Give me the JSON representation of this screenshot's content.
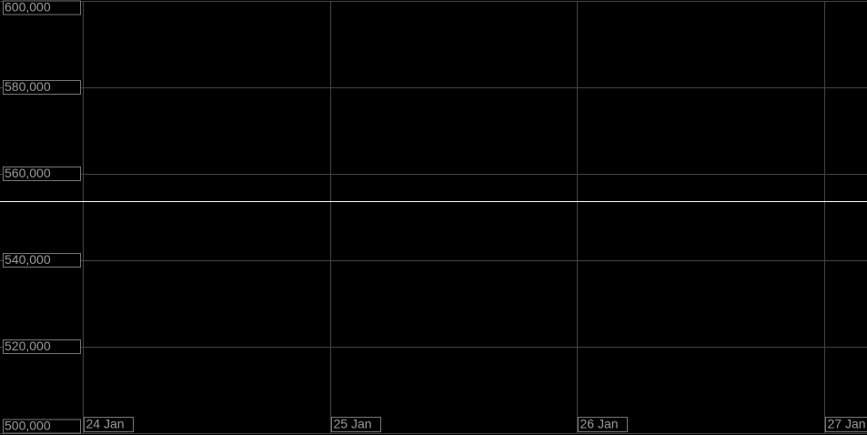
{
  "chart_data": {
    "type": "line",
    "categories": [
      "24 Jan",
      "25 Jan",
      "26 Jan",
      "27 Jan"
    ],
    "reference_line": 553700,
    "ylim": [
      500000,
      600000
    ],
    "yticks": [
      {
        "value": 500000,
        "label": "500,000"
      },
      {
        "value": 520000,
        "label": "520,000"
      },
      {
        "value": 540000,
        "label": "540,000"
      },
      {
        "value": 560000,
        "label": "560,000"
      },
      {
        "value": 580000,
        "label": "580,000"
      },
      {
        "value": 600000,
        "label": "600,000"
      }
    ],
    "grid": true,
    "line_color": "#ffffff",
    "background": "#000000"
  }
}
